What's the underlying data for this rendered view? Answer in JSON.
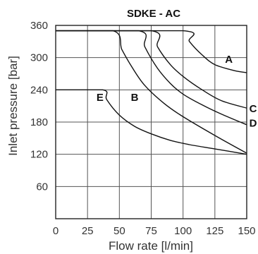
{
  "chart_data": {
    "type": "line",
    "title": "SDKE - AC",
    "xlabel": "Flow rate [l/min]",
    "ylabel": "Inlet pressure [bar]",
    "xlim": [
      0,
      150
    ],
    "ylim": [
      0,
      360
    ],
    "x_ticks": [
      0,
      25,
      50,
      75,
      100,
      125,
      150
    ],
    "y_ticks": [
      60,
      120,
      180,
      240,
      300,
      360
    ],
    "grid": true,
    "legend": "none",
    "series": [
      {
        "name": "A",
        "points": [
          [
            0,
            350
          ],
          [
            100,
            350
          ],
          [
            105,
            330
          ],
          [
            115,
            305
          ],
          [
            125,
            287
          ],
          [
            140,
            276
          ],
          [
            150,
            272
          ]
        ]
      },
      {
        "name": "C",
        "points": [
          [
            0,
            350
          ],
          [
            75,
            350
          ],
          [
            80,
            320
          ],
          [
            90,
            287
          ],
          [
            100,
            265
          ],
          [
            115,
            240
          ],
          [
            130,
            220
          ],
          [
            150,
            206
          ]
        ]
      },
      {
        "name": "D",
        "points": [
          [
            0,
            350
          ],
          [
            65,
            350
          ],
          [
            70,
            320
          ],
          [
            80,
            280
          ],
          [
            90,
            252
          ],
          [
            100,
            232
          ],
          [
            115,
            212
          ],
          [
            130,
            195
          ],
          [
            150,
            175
          ]
        ]
      },
      {
        "name": "B",
        "points": [
          [
            0,
            350
          ],
          [
            45,
            350
          ],
          [
            52,
            315
          ],
          [
            60,
            282
          ],
          [
            70,
            248
          ],
          [
            85,
            215
          ],
          [
            100,
            190
          ],
          [
            125,
            155
          ],
          [
            150,
            122
          ]
        ]
      },
      {
        "name": "E",
        "points": [
          [
            0,
            240
          ],
          [
            37,
            240
          ],
          [
            40,
            222
          ],
          [
            50,
            193
          ],
          [
            62,
            172
          ],
          [
            75,
            158
          ],
          [
            90,
            146
          ],
          [
            105,
            138
          ],
          [
            125,
            130
          ],
          [
            150,
            120
          ]
        ]
      }
    ],
    "annotations": [
      {
        "text": "A",
        "x": 133,
        "y": 297
      },
      {
        "text": "B",
        "x": 59,
        "y": 226
      },
      {
        "text": "C",
        "x": 152,
        "y": 205
      },
      {
        "text": "D",
        "x": 152,
        "y": 178
      },
      {
        "text": "E",
        "x": 32,
        "y": 226
      }
    ]
  }
}
